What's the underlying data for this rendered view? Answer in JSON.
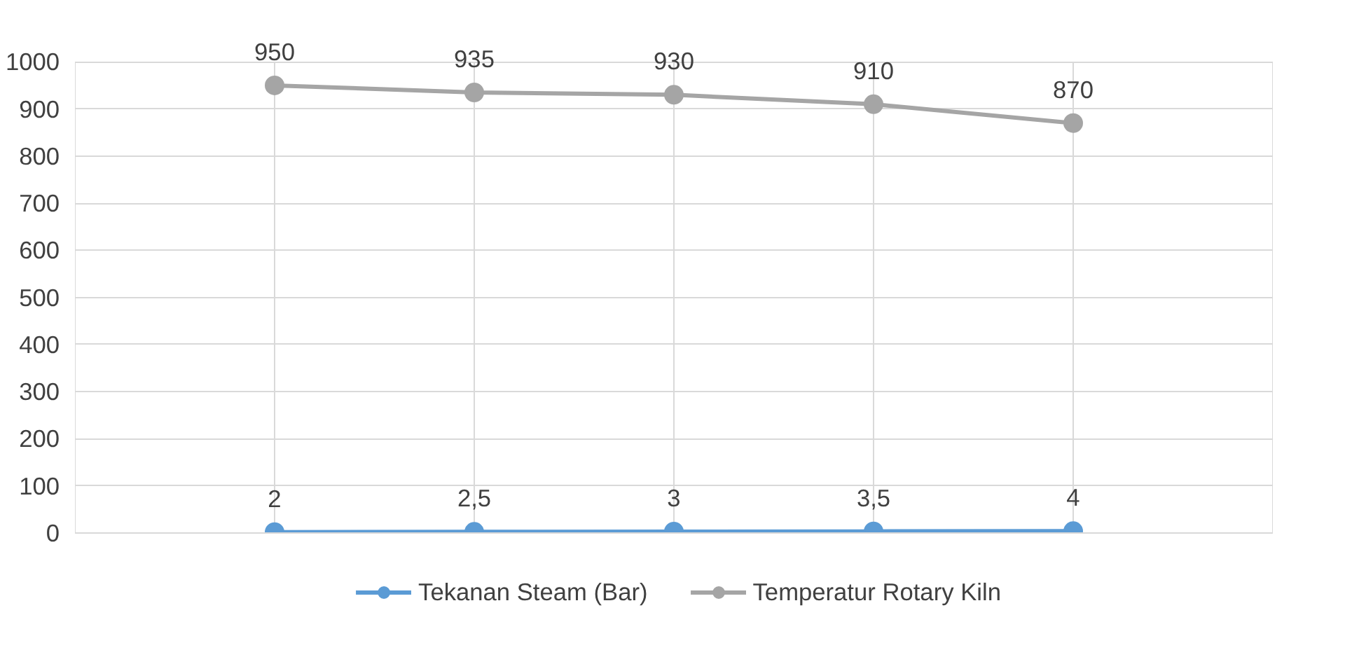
{
  "chart_data": {
    "type": "line",
    "categories": [
      null,
      null,
      null,
      null,
      null,
      null,
      null
    ],
    "series": [
      {
        "name": "Tekanan Steam (Bar)",
        "color": "#5b9bd5",
        "values": [
          null,
          2,
          2.5,
          3,
          3.5,
          4,
          null
        ],
        "value_labels": [
          null,
          "2",
          "2,5",
          "3",
          "3,5",
          "4",
          null
        ]
      },
      {
        "name": "Temperatur Rotary Kiln",
        "color": "#a5a5a5",
        "values": [
          null,
          950,
          935,
          930,
          910,
          870,
          null
        ],
        "value_labels": [
          null,
          "950",
          "935",
          "930",
          "910",
          "870",
          null
        ]
      }
    ],
    "ylim": [
      0,
      1000
    ],
    "yticks": [
      0,
      100,
      200,
      300,
      400,
      500,
      600,
      700,
      800,
      900,
      1000
    ],
    "grid": true,
    "legend": "bottom",
    "marker": "circle",
    "line_style": "solid",
    "tick_labels": "y"
  }
}
